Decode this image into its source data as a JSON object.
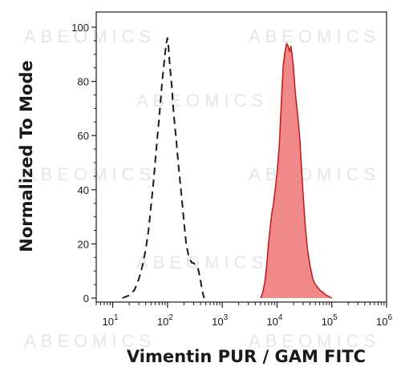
{
  "chart_data": {
    "type": "histogram",
    "xlabel": "Vimentin PUR / GAM FITC",
    "ylabel": "Normalized To Mode",
    "xscale": "log",
    "xlim": [
      5,
      1000000
    ],
    "ylim": [
      0,
      100
    ],
    "x_ticks": [
      {
        "base": "10",
        "exp": "1",
        "value": 10
      },
      {
        "base": "10",
        "exp": "2",
        "value": 100
      },
      {
        "base": "10",
        "exp": "3",
        "value": 1000
      },
      {
        "base": "10",
        "exp": "4",
        "value": 10000
      },
      {
        "base": "10",
        "exp": "5",
        "value": 100000
      },
      {
        "base": "10",
        "exp": "6",
        "value": 1000000
      }
    ],
    "y_ticks": [
      "0",
      "20",
      "40",
      "60",
      "80",
      "100"
    ],
    "watermark": "ABEOMICS",
    "series": [
      {
        "style": "dashed",
        "color": "#1a1a1a",
        "fill": "none",
        "points": [
          [
            15,
            0
          ],
          [
            20,
            1
          ],
          [
            25,
            3
          ],
          [
            30,
            7
          ],
          [
            35,
            12
          ],
          [
            40,
            18
          ],
          [
            45,
            25
          ],
          [
            50,
            34
          ],
          [
            55,
            42
          ],
          [
            60,
            51
          ],
          [
            65,
            59
          ],
          [
            70,
            66
          ],
          [
            75,
            73
          ],
          [
            80,
            80
          ],
          [
            85,
            85
          ],
          [
            90,
            90
          ],
          [
            95,
            94
          ],
          [
            100,
            96
          ],
          [
            105,
            92
          ],
          [
            110,
            86
          ],
          [
            120,
            78
          ],
          [
            130,
            68
          ],
          [
            145,
            58
          ],
          [
            160,
            48
          ],
          [
            180,
            38
          ],
          [
            200,
            28
          ],
          [
            220,
            20
          ],
          [
            240,
            16
          ],
          [
            260,
            14
          ],
          [
            280,
            13
          ],
          [
            300,
            13
          ],
          [
            330,
            12
          ],
          [
            360,
            11
          ],
          [
            390,
            8
          ],
          [
            420,
            4
          ],
          [
            450,
            1
          ],
          [
            470,
            0
          ]
        ]
      },
      {
        "style": "filled",
        "color": "#c41e1e",
        "fill": "#f08a8a",
        "points": [
          [
            5000,
            0
          ],
          [
            5500,
            2
          ],
          [
            6000,
            6
          ],
          [
            6500,
            12
          ],
          [
            7000,
            20
          ],
          [
            7500,
            26
          ],
          [
            8000,
            31
          ],
          [
            8500,
            34
          ],
          [
            9000,
            38
          ],
          [
            9500,
            42
          ],
          [
            10000,
            46
          ],
          [
            11000,
            56
          ],
          [
            12000,
            72
          ],
          [
            13000,
            86
          ],
          [
            14000,
            91
          ],
          [
            15000,
            94
          ],
          [
            16000,
            93
          ],
          [
            17000,
            91
          ],
          [
            18000,
            93
          ],
          [
            19000,
            89
          ],
          [
            20000,
            85
          ],
          [
            21000,
            79
          ],
          [
            22000,
            74
          ],
          [
            24000,
            67
          ],
          [
            26000,
            59
          ],
          [
            28000,
            48
          ],
          [
            30000,
            38
          ],
          [
            33000,
            26
          ],
          [
            36000,
            18
          ],
          [
            40000,
            12
          ],
          [
            45000,
            7
          ],
          [
            50000,
            5
          ],
          [
            55000,
            4
          ],
          [
            60000,
            3
          ],
          [
            70000,
            2
          ],
          [
            80000,
            1
          ],
          [
            100000,
            0
          ]
        ]
      }
    ]
  }
}
